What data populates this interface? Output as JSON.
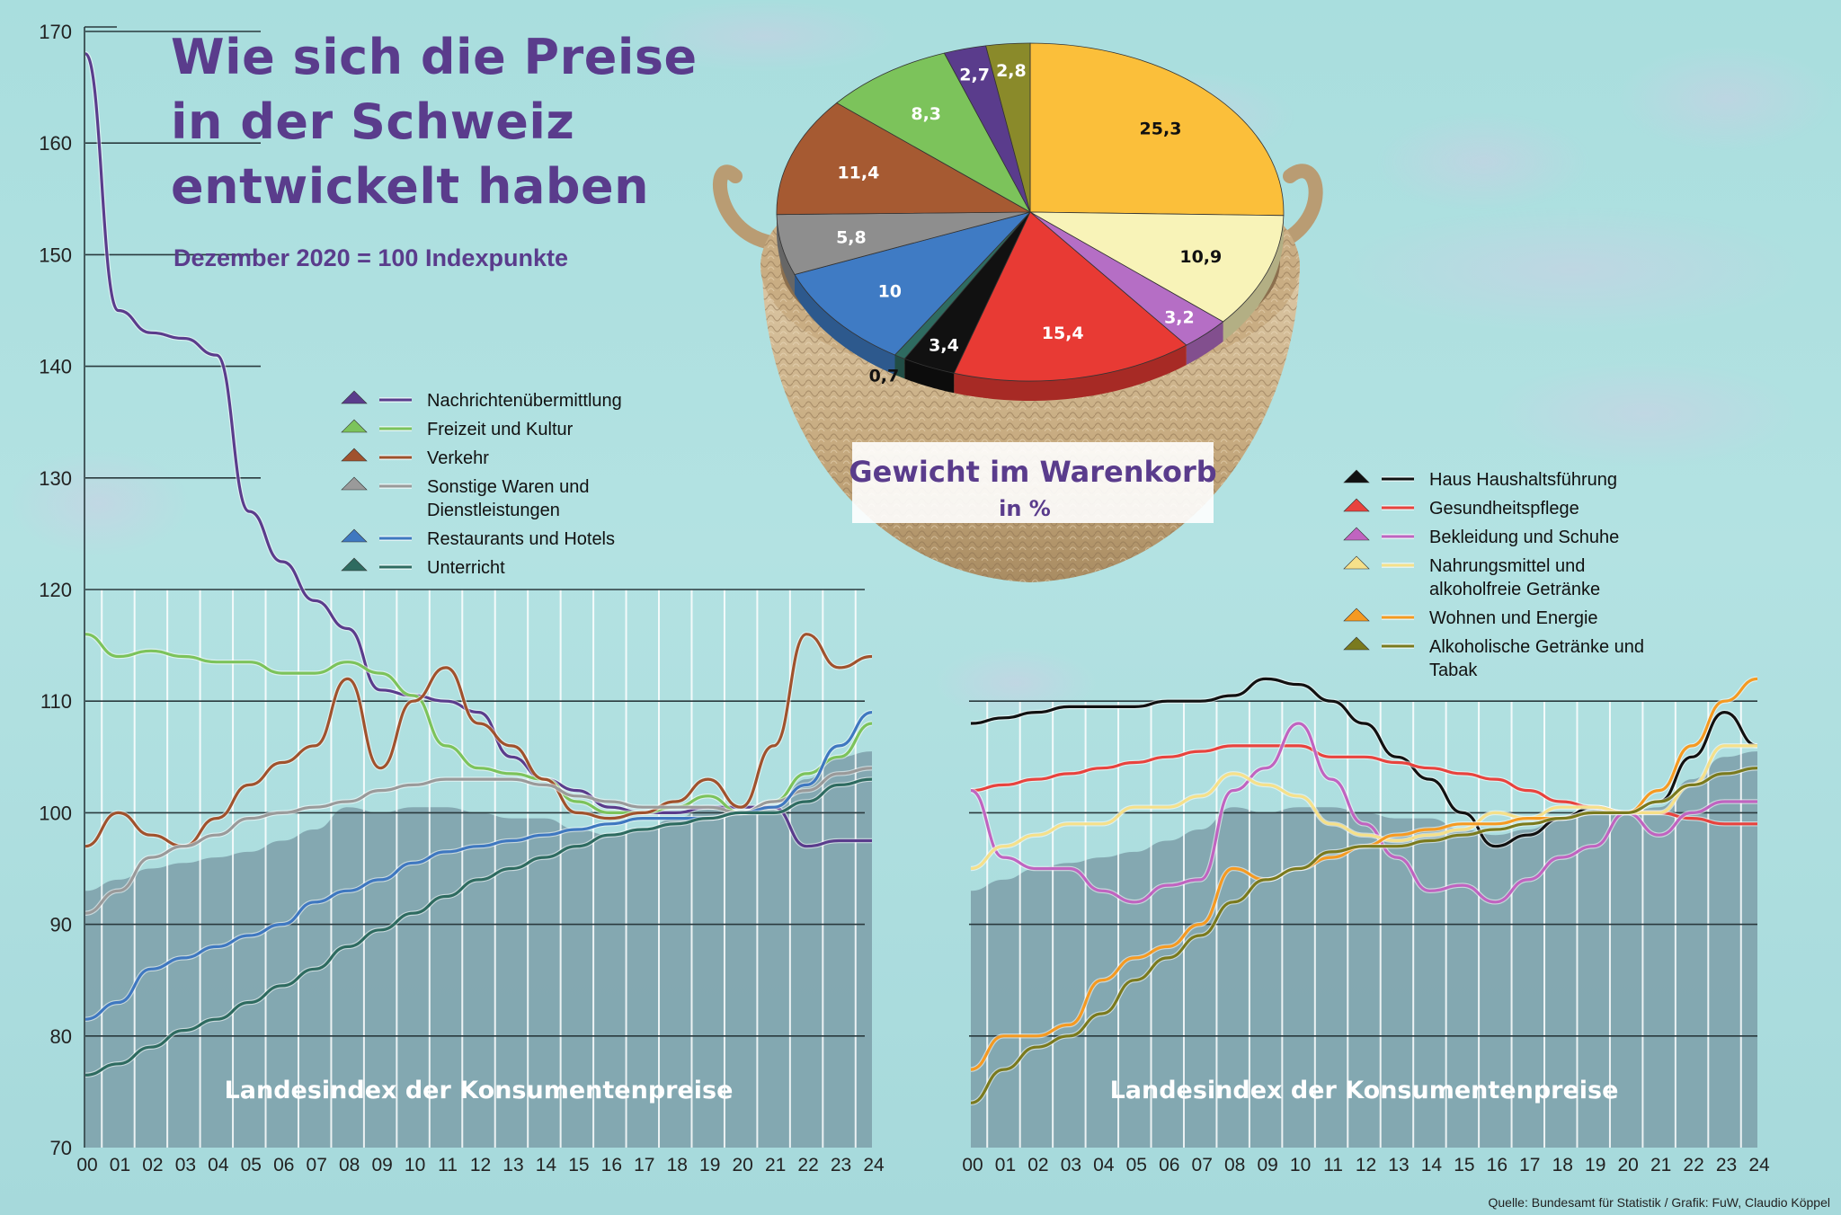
{
  "title": {
    "line1": "Wie sich die Preise",
    "line2": "in der Schweiz",
    "line3": "entwickelt  haben",
    "subtitle": "Dezember 2020 = 100 Indexpunkte"
  },
  "source": "Quelle: Bundesamt für Statistik  / Grafik: FuW, Claudio Köppel",
  "chart_data": [
    {
      "type": "line",
      "id": "left",
      "title": "Landesindex der Konsumentenpreise",
      "xlabel": "",
      "ylabel": "",
      "ylim": [
        70,
        170
      ],
      "yticks": [
        "70",
        "80",
        "90",
        "100",
        "110",
        "120",
        "130",
        "140",
        "150",
        "160",
        "170"
      ],
      "x": [
        "00",
        "01",
        "02",
        "03",
        "04",
        "05",
        "06",
        "07",
        "08",
        "09",
        "10",
        "11",
        "12",
        "13",
        "14",
        "15",
        "16",
        "17",
        "18",
        "19",
        "20",
        "21",
        "22",
        "23",
        "24"
      ],
      "series": [
        {
          "name": "Nachrichtenübermittlung",
          "color": "#5a3c8c",
          "values": [
            168,
            145,
            143,
            142.5,
            141,
            127,
            122.5,
            119,
            116.5,
            111,
            110.5,
            110,
            109,
            105,
            103,
            102,
            100.5,
            100,
            100,
            100.5,
            100.5,
            100.5,
            97,
            97.5,
            97.5
          ]
        },
        {
          "name": "Freizeit und Kultur",
          "color": "#7cc35b",
          "values": [
            116,
            114,
            114.5,
            114,
            113.5,
            113.5,
            112.5,
            112.5,
            113.5,
            112.5,
            110.5,
            106,
            104,
            103.5,
            103,
            101,
            100,
            100,
            100.5,
            101.5,
            100,
            101,
            103.5,
            105,
            108
          ]
        },
        {
          "name": "Verkehr",
          "color": "#a0522d",
          "values": [
            97,
            100,
            98,
            97,
            99.5,
            102.5,
            104.5,
            106,
            112,
            104,
            110,
            113,
            108,
            106,
            103,
            100,
            99.5,
            100,
            101,
            103,
            100.5,
            106,
            116,
            113,
            114
          ]
        },
        {
          "name": "Sonstige Waren und Dienstleistungen",
          "color": "#9a9a9a",
          "values": [
            91,
            93,
            96,
            97,
            98,
            99.5,
            100,
            100.5,
            101,
            102,
            102.5,
            103,
            103,
            103,
            102.5,
            101.5,
            101,
            100.5,
            100.5,
            100.5,
            100,
            101,
            102,
            103.5,
            104
          ]
        },
        {
          "name": "Restaurants und Hotels",
          "color": "#3f78c0",
          "values": [
            81.5,
            83,
            86,
            87,
            88,
            89,
            90,
            92,
            93,
            94,
            95.5,
            96.5,
            97,
            97.5,
            98,
            98.5,
            99,
            99.5,
            99.5,
            99.5,
            100,
            100.5,
            102.5,
            106,
            109
          ]
        },
        {
          "name": "Unterricht",
          "color": "#2e6b60",
          "values": [
            76.5,
            77.5,
            79,
            80.5,
            81.5,
            83,
            84.5,
            86,
            88,
            89.5,
            91,
            92.5,
            94,
            95,
            96,
            97,
            98,
            98.5,
            99,
            99.5,
            100,
            100,
            101,
            102.5,
            103
          ]
        }
      ],
      "area": {
        "name": "Landesindex der Konsumentenpreise",
        "values": [
          93,
          94,
          95,
          95.5,
          96,
          96.5,
          97.5,
          98.5,
          100.5,
          100,
          100.5,
          100.5,
          100,
          99.5,
          99.5,
          98.5,
          98,
          98.5,
          99.5,
          100.5,
          100,
          100.5,
          103,
          105,
          105.5
        ]
      }
    },
    {
      "type": "line",
      "id": "right",
      "title": "Landesindex der Konsumentenpreise",
      "xlabel": "",
      "ylabel": "",
      "ylim": [
        70,
        120
      ],
      "x": [
        "00",
        "01",
        "02",
        "03",
        "04",
        "05",
        "06",
        "07",
        "08",
        "09",
        "10",
        "11",
        "12",
        "13",
        "14",
        "15",
        "16",
        "17",
        "18",
        "19",
        "20",
        "21",
        "22",
        "23",
        "24"
      ],
      "series": [
        {
          "name": "Haus  Haushaltsführung",
          "color": "#111111",
          "values": [
            108,
            108.5,
            109,
            109.5,
            109.5,
            109.5,
            110,
            110,
            110.5,
            112,
            111.5,
            110,
            108,
            105,
            103,
            100,
            97,
            98,
            99.5,
            100.5,
            100,
            101,
            105,
            109,
            106
          ]
        },
        {
          "name": "Gesundheitspflege",
          "color": "#e8433e",
          "values": [
            102,
            102.5,
            103,
            103.5,
            104,
            104.5,
            105,
            105.5,
            106,
            106,
            106,
            105,
            105,
            104.5,
            104,
            103.5,
            103,
            102,
            101,
            100.5,
            100,
            100,
            99.5,
            99,
            99
          ]
        },
        {
          "name": "Bekleidung und Schuhe",
          "color": "#c064c0",
          "values": [
            102,
            96,
            95,
            95,
            93,
            92,
            93.5,
            94,
            102,
            104,
            108,
            103,
            99,
            96,
            93,
            93.5,
            92,
            94,
            96,
            97,
            100,
            98,
            100,
            101,
            101
          ]
        },
        {
          "name": "Nahrungsmittel und alkoholfreie Getränke",
          "color": "#f5e08a",
          "values": [
            95,
            97,
            98,
            99,
            99,
            100.5,
            100.5,
            101.5,
            103.5,
            102.5,
            101.5,
            99,
            98,
            97.5,
            98,
            98.5,
            100,
            99.5,
            100.5,
            100.5,
            100,
            100,
            102.5,
            106,
            106
          ]
        },
        {
          "name": "Wohnen und Energie",
          "color": "#f59a22",
          "values": [
            77,
            80,
            80,
            81,
            85,
            87,
            88,
            90,
            95,
            94,
            95,
            96,
            97,
            98,
            98.5,
            99,
            99,
            99.5,
            99.5,
            100,
            100,
            102,
            106,
            110,
            112
          ]
        },
        {
          "name": "Alkoholische Getränke und Tabak",
          "color": "#7a7a1e",
          "values": [
            74,
            77,
            79,
            80,
            82,
            85,
            87,
            89,
            92,
            94,
            95,
            96.5,
            97,
            97,
            97.5,
            98,
            98.5,
            99,
            99.5,
            100,
            100,
            101,
            102.5,
            103.5,
            104
          ]
        }
      ],
      "area": {
        "name": "Landesindex der Konsumentenpreise",
        "values": [
          93,
          94,
          95,
          95.5,
          96,
          96.5,
          97.5,
          98.5,
          100.5,
          100,
          100.5,
          100.5,
          100,
          99.5,
          99.5,
          98.5,
          98,
          98.5,
          99.5,
          100.5,
          100,
          100.5,
          103,
          105,
          105.5
        ]
      }
    },
    {
      "type": "pie",
      "id": "basket",
      "title": "Gewicht im Warenkorb",
      "subtitle": "in %",
      "slices": [
        {
          "label": "25,3",
          "value": 25.3,
          "color": "#fbbf3a",
          "category": "Wohnen und Energie"
        },
        {
          "label": "10,9",
          "value": 10.9,
          "color": "#f8f3b8",
          "category": "Nahrungsmittel und alkoholfreie Getränke"
        },
        {
          "label": "3,2",
          "value": 3.2,
          "color": "#b56ec5",
          "category": "Bekleidung und Schuhe"
        },
        {
          "label": "15,4",
          "value": 15.4,
          "color": "#e83a34",
          "category": "Gesundheitspflege"
        },
        {
          "label": "3,4",
          "value": 3.4,
          "color": "#111111",
          "category": "Haus  Haushaltsführung"
        },
        {
          "label": "0,7",
          "value": 0.7,
          "color": "#2e6b60",
          "category": "Unterricht"
        },
        {
          "label": "10",
          "value": 10,
          "color": "#3f7bc4",
          "category": "Restaurants und Hotels"
        },
        {
          "label": "5,8",
          "value": 5.8,
          "color": "#8e8e8e",
          "category": "Sonstige Waren und Dienstleistungen"
        },
        {
          "label": "11,4",
          "value": 11.4,
          "color": "#a65a32",
          "category": "Verkehr"
        },
        {
          "label": "8,3",
          "value": 8.3,
          "color": "#7cc35b",
          "category": "Freizeit und Kultur"
        },
        {
          "label": "2,7",
          "value": 2.7,
          "color": "#5a3c8c",
          "category": "Nachrichtenübermittlung"
        },
        {
          "label": "2,8",
          "value": 2.8,
          "color": "#8a8a2a",
          "category": "Alkoholische Getränke und Tabak"
        }
      ]
    }
  ]
}
